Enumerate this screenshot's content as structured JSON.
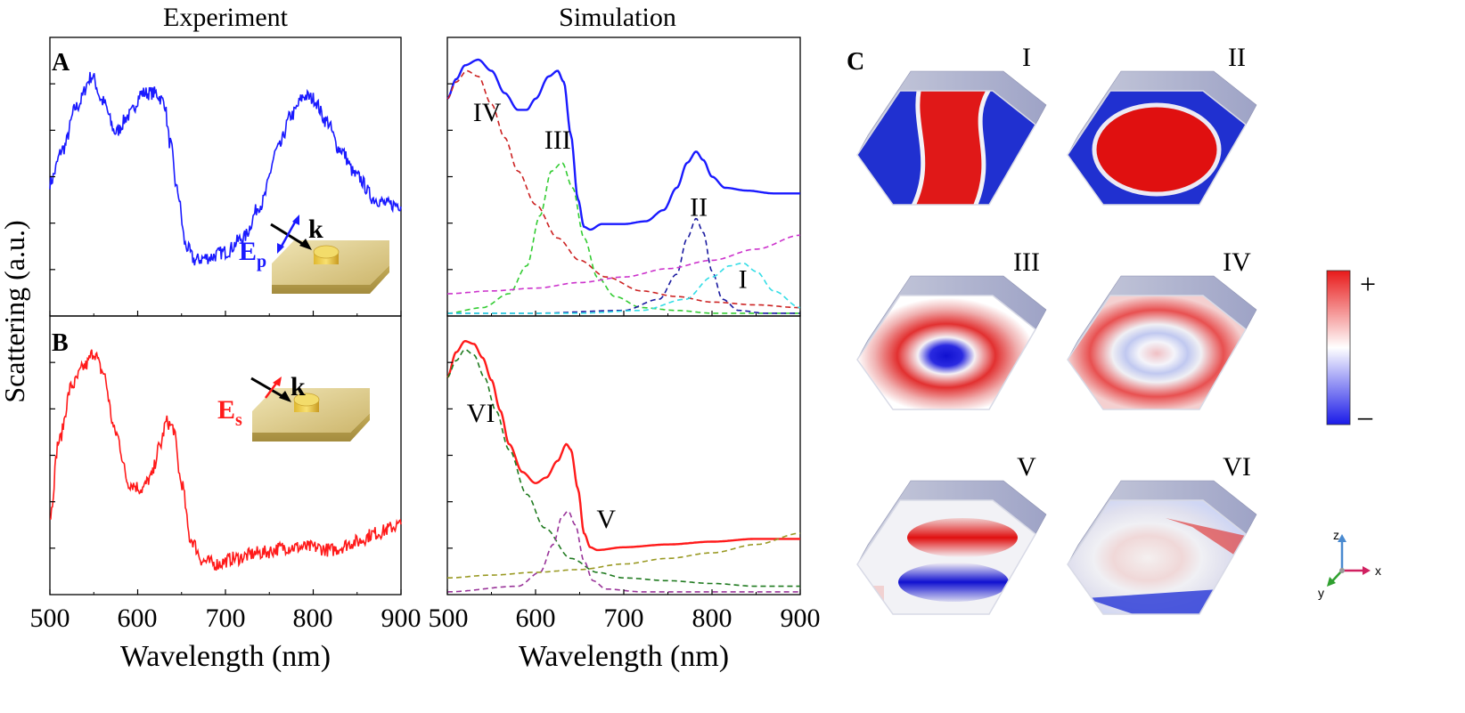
{
  "column_titles": {
    "experiment": "Experiment",
    "simulation": "Simulation"
  },
  "panel_labels": {
    "a": "A",
    "b": "B",
    "c": "C"
  },
  "y_axis_label": "Scattering (a.u.)",
  "x_axis_label": "Wavelength (nm)",
  "insets": {
    "p": {
      "k": "k",
      "field_main": "E",
      "field_sub": "p",
      "color": "#1a1aff"
    },
    "s": {
      "k": "k",
      "field_main": "E",
      "field_sub": "s",
      "color": "#ff1a1a"
    }
  },
  "colors": {
    "exp_p": "#1a1aff",
    "exp_s": "#ff1a1a",
    "sim_p": "#1a1aff",
    "sim_s": "#ff1a1a",
    "mode_I": "#33dde6",
    "mode_II": "#1a1aa0",
    "mode_III": "#33cc33",
    "mode_IV": "#cc2222",
    "mode_V": "#993399",
    "mode_VI": "#1f7a1f",
    "bg_p": "#cc33cc",
    "bg_s": "#999922"
  },
  "mode_labels": {
    "sim_p": [
      {
        "text": "IV",
        "x": 545,
        "y": 0.7
      },
      {
        "text": "III",
        "x": 625,
        "y": 0.6
      },
      {
        "text": "II",
        "x": 785,
        "y": 0.36
      },
      {
        "text": "I",
        "x": 835,
        "y": 0.1
      }
    ],
    "sim_s": [
      {
        "text": "VI",
        "x": 538,
        "y": 0.62
      },
      {
        "text": "V",
        "x": 680,
        "y": 0.24
      }
    ]
  },
  "colorbar": {
    "plus": "+",
    "minus": "–"
  },
  "mode_maps": [
    {
      "label": "I",
      "pattern": "split"
    },
    {
      "label": "II",
      "pattern": "center"
    },
    {
      "label": "III",
      "pattern": "ring-blue-center"
    },
    {
      "label": "IV",
      "pattern": "ring-faint"
    },
    {
      "label": "V",
      "pattern": "dipole"
    },
    {
      "label": "VI",
      "pattern": "edge"
    }
  ],
  "axes_triad": {
    "x": "x",
    "y": "y",
    "z": "z"
  },
  "chart_data": [
    {
      "id": "exp_p",
      "type": "line",
      "xlim": [
        500,
        900
      ],
      "ylim": [
        0,
        1
      ],
      "xticks": [
        500,
        600,
        700,
        800,
        900
      ],
      "series": [
        {
          "color": "#1a1aff",
          "noisy": true,
          "x": [
            500,
            515,
            530,
            548,
            560,
            575,
            590,
            605,
            620,
            630,
            637,
            645,
            655,
            665,
            680,
            700,
            720,
            740,
            760,
            775,
            790,
            800,
            815,
            830,
            850,
            870,
            885,
            900
          ],
          "y": [
            0.48,
            0.6,
            0.75,
            0.86,
            0.77,
            0.66,
            0.72,
            0.8,
            0.8,
            0.77,
            0.62,
            0.45,
            0.25,
            0.2,
            0.21,
            0.23,
            0.28,
            0.4,
            0.6,
            0.72,
            0.79,
            0.78,
            0.7,
            0.6,
            0.5,
            0.42,
            0.4,
            0.4
          ]
        }
      ]
    },
    {
      "id": "exp_s",
      "type": "line",
      "xlim": [
        500,
        900
      ],
      "ylim": [
        0,
        1
      ],
      "xticks": [
        500,
        600,
        700,
        800,
        900
      ],
      "series": [
        {
          "color": "#ff1a1a",
          "noisy": true,
          "x": [
            500,
            510,
            525,
            540,
            550,
            560,
            575,
            590,
            605,
            615,
            625,
            633,
            640,
            650,
            660,
            675,
            690,
            710,
            740,
            770,
            800,
            820,
            850,
            870,
            900
          ],
          "y": [
            0.28,
            0.55,
            0.75,
            0.82,
            0.87,
            0.8,
            0.58,
            0.4,
            0.38,
            0.42,
            0.53,
            0.62,
            0.6,
            0.4,
            0.2,
            0.12,
            0.11,
            0.13,
            0.15,
            0.17,
            0.17,
            0.16,
            0.19,
            0.22,
            0.25
          ]
        }
      ]
    },
    {
      "id": "sim_p",
      "type": "line",
      "xlim": [
        500,
        900
      ],
      "ylim": [
        0,
        1
      ],
      "xticks": [
        500,
        600,
        700,
        800,
        900
      ],
      "series": [
        {
          "name": "total",
          "color": "#1a1aff",
          "dashed": false,
          "x": [
            500,
            510,
            520,
            535,
            550,
            565,
            580,
            590,
            600,
            615,
            625,
            632,
            640,
            648,
            655,
            662,
            675,
            700,
            725,
            745,
            760,
            772,
            782,
            790,
            800,
            815,
            840,
            870,
            900
          ],
          "y": [
            0.78,
            0.85,
            0.9,
            0.92,
            0.88,
            0.8,
            0.74,
            0.74,
            0.78,
            0.86,
            0.88,
            0.84,
            0.65,
            0.42,
            0.32,
            0.31,
            0.33,
            0.33,
            0.34,
            0.38,
            0.46,
            0.55,
            0.59,
            0.56,
            0.5,
            0.46,
            0.45,
            0.44,
            0.44
          ]
        },
        {
          "name": "IV",
          "color": "#cc2222",
          "dashed": true,
          "x": [
            500,
            510,
            522,
            535,
            550,
            565,
            580,
            600,
            625,
            650,
            680,
            720,
            760,
            800,
            850,
            900
          ],
          "y": [
            0.78,
            0.84,
            0.88,
            0.86,
            0.76,
            0.64,
            0.52,
            0.4,
            0.28,
            0.2,
            0.14,
            0.09,
            0.07,
            0.05,
            0.04,
            0.03
          ]
        },
        {
          "name": "III",
          "color": "#33cc33",
          "dashed": true,
          "x": [
            500,
            540,
            570,
            590,
            605,
            618,
            630,
            642,
            655,
            670,
            690,
            720,
            760,
            800,
            850,
            900
          ],
          "y": [
            0.01,
            0.03,
            0.08,
            0.18,
            0.36,
            0.52,
            0.55,
            0.46,
            0.28,
            0.14,
            0.07,
            0.03,
            0.02,
            0.01,
            0.01,
            0.01
          ]
        },
        {
          "name": "II",
          "color": "#1a1aa0",
          "dashed": true,
          "x": [
            500,
            600,
            700,
            740,
            760,
            772,
            782,
            790,
            800,
            812,
            830,
            860,
            900
          ],
          "y": [
            0.01,
            0.01,
            0.02,
            0.06,
            0.15,
            0.28,
            0.35,
            0.3,
            0.16,
            0.06,
            0.02,
            0.01,
            0.01
          ]
        },
        {
          "name": "I",
          "color": "#33dde6",
          "dashed": true,
          "x": [
            500,
            650,
            720,
            770,
            800,
            820,
            835,
            850,
            870,
            900
          ],
          "y": [
            0.01,
            0.01,
            0.02,
            0.06,
            0.14,
            0.18,
            0.19,
            0.16,
            0.09,
            0.03
          ]
        },
        {
          "name": "bg",
          "color": "#cc33cc",
          "dashed": true,
          "x": [
            500,
            550,
            600,
            650,
            700,
            750,
            800,
            850,
            900
          ],
          "y": [
            0.08,
            0.09,
            0.1,
            0.12,
            0.14,
            0.17,
            0.2,
            0.24,
            0.29
          ]
        }
      ]
    },
    {
      "id": "sim_s",
      "type": "line",
      "xlim": [
        500,
        900
      ],
      "ylim": [
        0,
        1
      ],
      "xticks": [
        500,
        600,
        700,
        800,
        900
      ],
      "series": [
        {
          "name": "total",
          "color": "#ff1a1a",
          "dashed": false,
          "x": [
            500,
            510,
            520,
            530,
            540,
            550,
            560,
            570,
            585,
            600,
            612,
            625,
            635,
            640,
            648,
            655,
            662,
            670,
            700,
            750,
            800,
            850,
            900
          ],
          "y": [
            0.78,
            0.87,
            0.91,
            0.9,
            0.85,
            0.77,
            0.66,
            0.54,
            0.44,
            0.4,
            0.42,
            0.48,
            0.54,
            0.52,
            0.38,
            0.22,
            0.17,
            0.16,
            0.17,
            0.18,
            0.19,
            0.2,
            0.2
          ]
        },
        {
          "name": "VI",
          "color": "#1f7a1f",
          "dashed": true,
          "x": [
            500,
            510,
            520,
            530,
            542,
            555,
            570,
            590,
            610,
            640,
            670,
            700,
            750,
            800,
            850,
            900
          ],
          "y": [
            0.78,
            0.84,
            0.88,
            0.86,
            0.78,
            0.66,
            0.52,
            0.36,
            0.24,
            0.13,
            0.08,
            0.06,
            0.05,
            0.04,
            0.03,
            0.03
          ]
        },
        {
          "name": "V",
          "color": "#993399",
          "dashed": true,
          "x": [
            500,
            580,
            605,
            620,
            630,
            637,
            645,
            655,
            665,
            680,
            720,
            800,
            900
          ],
          "y": [
            0.01,
            0.03,
            0.08,
            0.18,
            0.28,
            0.3,
            0.25,
            0.12,
            0.05,
            0.02,
            0.01,
            0.01,
            0.01
          ]
        },
        {
          "name": "bg",
          "color": "#999922",
          "dashed": true,
          "x": [
            500,
            550,
            600,
            650,
            700,
            750,
            800,
            850,
            900
          ],
          "y": [
            0.06,
            0.07,
            0.08,
            0.09,
            0.11,
            0.13,
            0.15,
            0.18,
            0.22
          ]
        }
      ]
    }
  ]
}
